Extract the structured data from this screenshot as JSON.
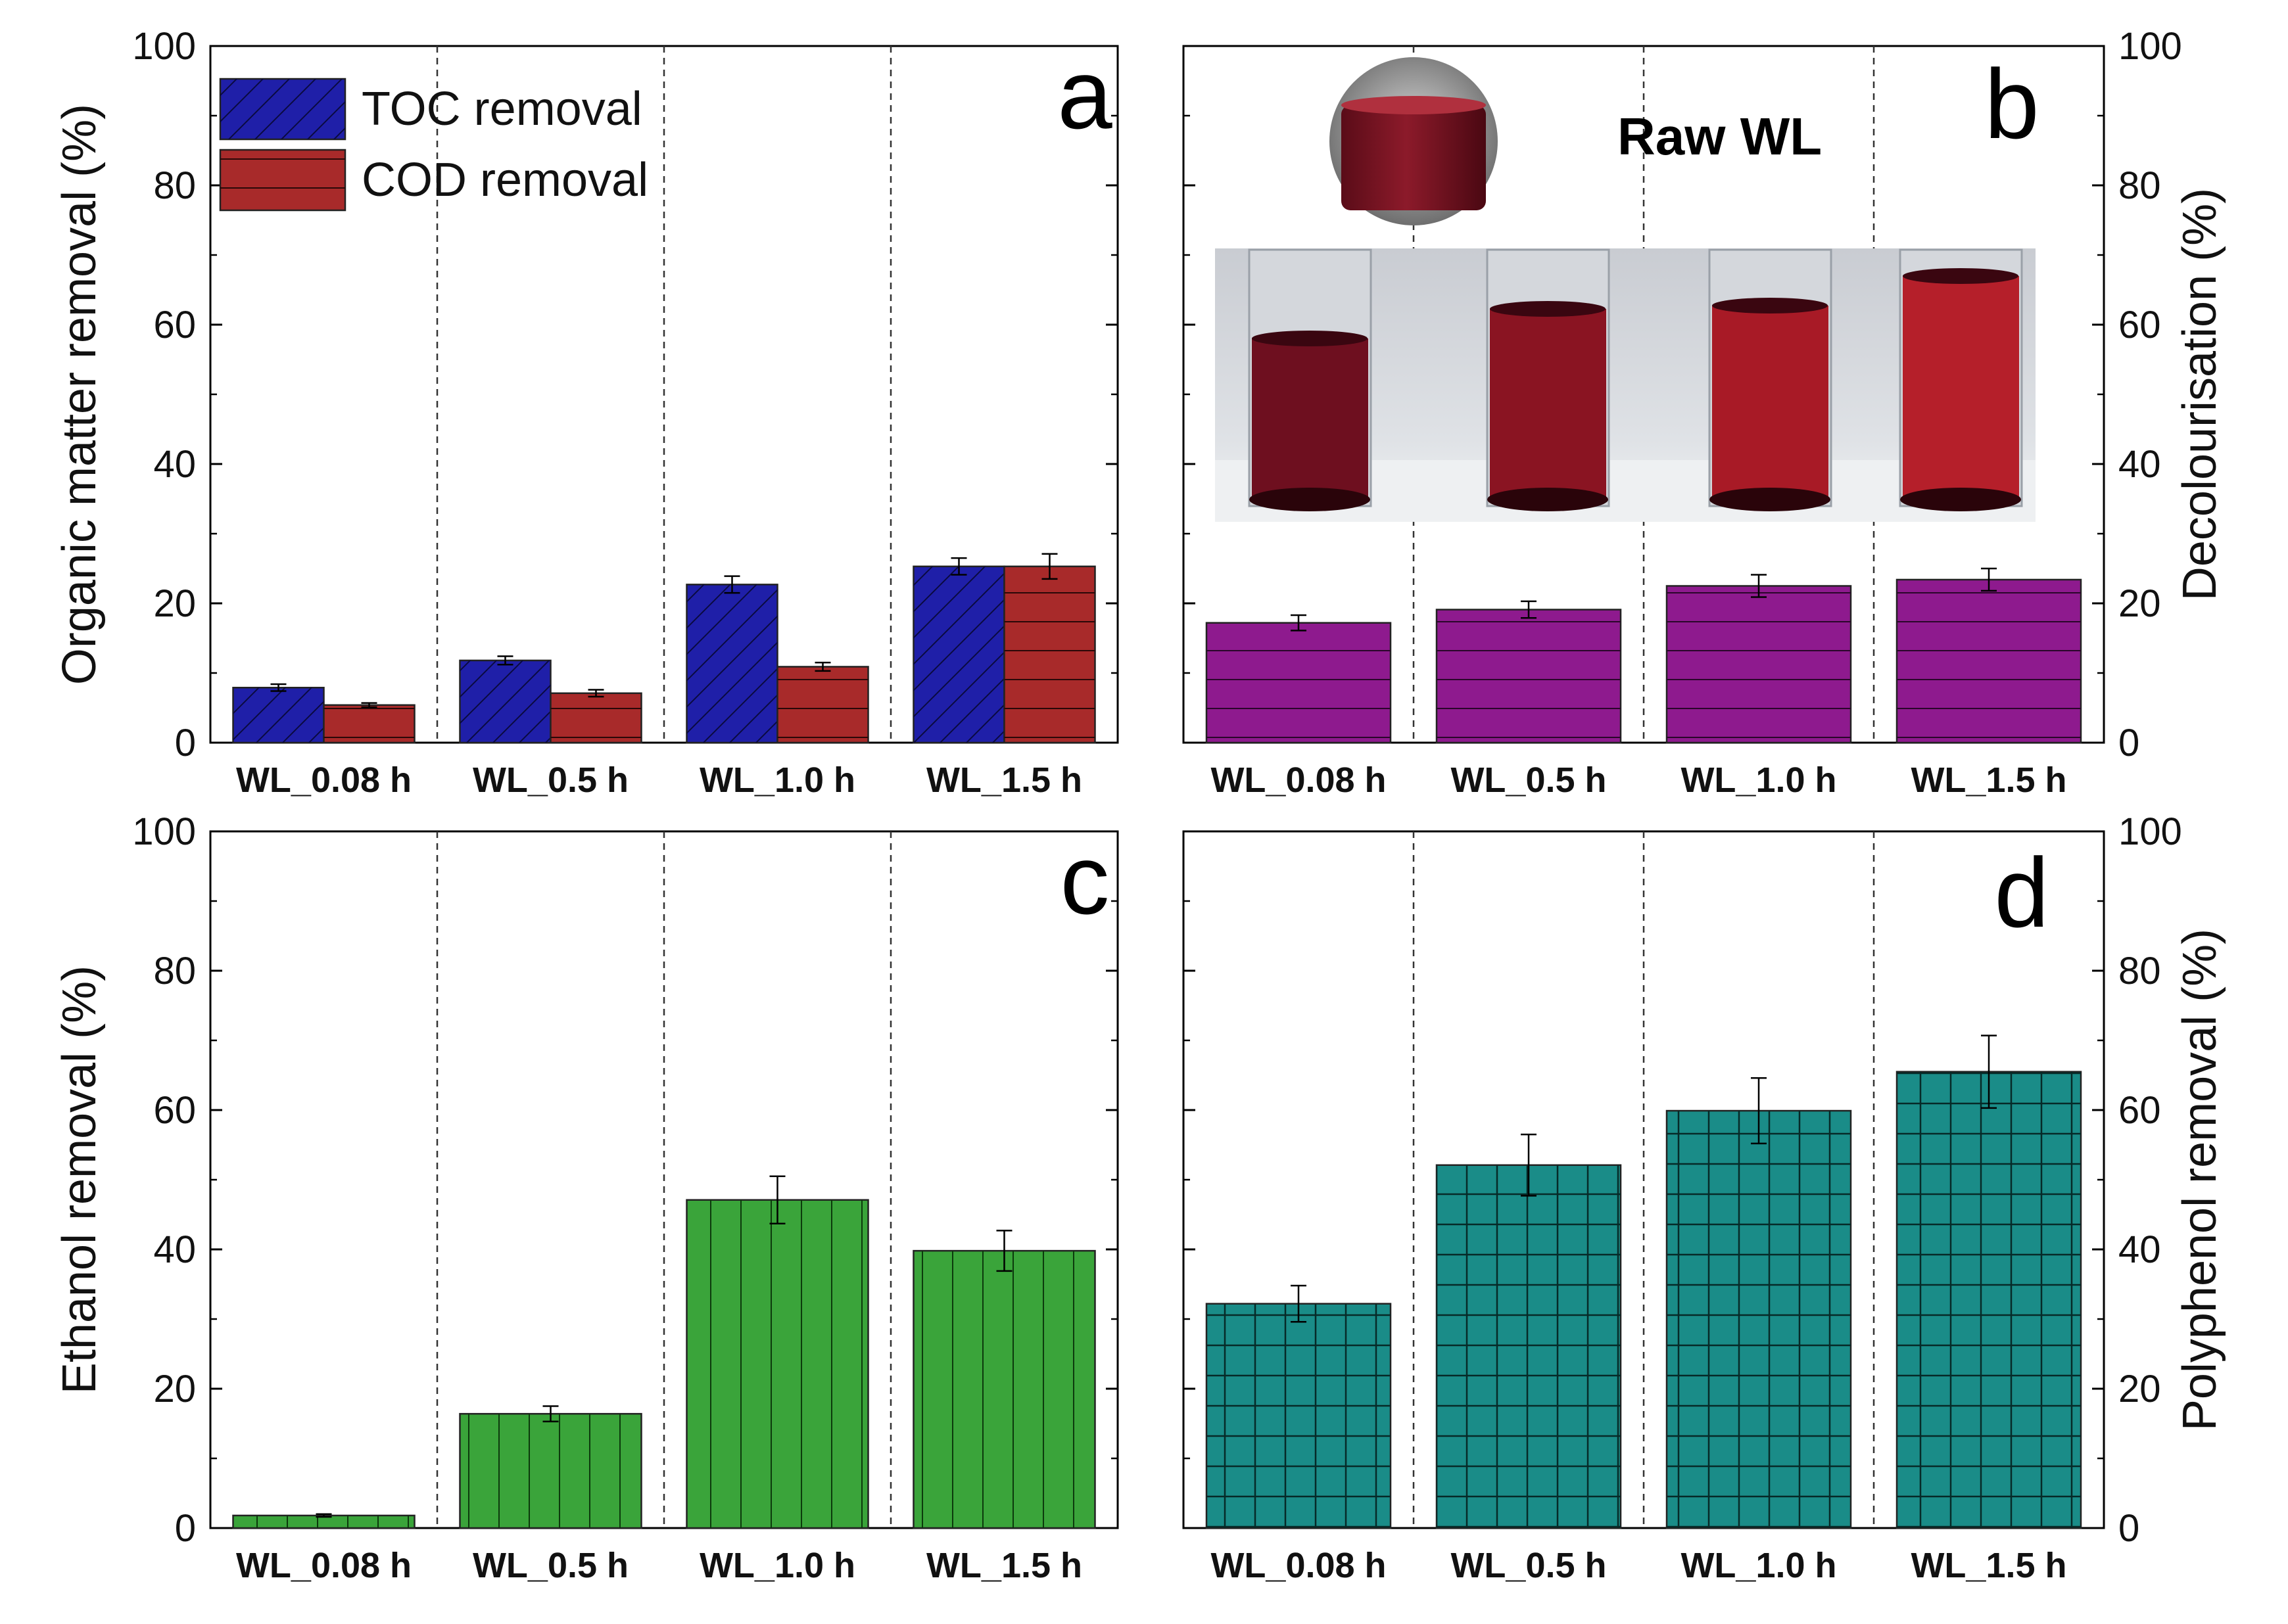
{
  "chart_data": [
    {
      "panel": "a",
      "type": "bar",
      "categories": [
        "WL_0.08 h",
        "WL_0.5 h",
        "WL_1.0 h",
        "WL_1.5 h"
      ],
      "series": [
        {
          "name": "TOC removal",
          "values": [
            7.9,
            11.8,
            22.7,
            25.3
          ],
          "errors": [
            0.5,
            0.6,
            1.2,
            1.2
          ],
          "color": "#1f1fa8",
          "pattern": "diagonal-hatch"
        },
        {
          "name": "COD removal",
          "values": [
            5.4,
            7.1,
            10.9,
            25.3
          ],
          "errors": [
            0.3,
            0.5,
            0.6,
            1.8
          ],
          "color": "#a82a2a",
          "pattern": "horizontal-lines"
        }
      ],
      "ylabel": "Organic matter removal (%)",
      "ylim": [
        0,
        100
      ],
      "yticks": [
        "0",
        "20",
        "40",
        "60",
        "80",
        "100"
      ],
      "yaxis_side": "left",
      "legend_location": "top-left",
      "grid": false
    },
    {
      "panel": "b",
      "type": "bar",
      "categories": [
        "WL_0.08 h",
        "WL_0.5 h",
        "WL_1.0 h",
        "WL_1.5 h"
      ],
      "series": [
        {
          "name": "Decolourisation",
          "values": [
            17.2,
            19.1,
            22.5,
            23.4
          ],
          "errors": [
            1.1,
            1.2,
            1.6,
            1.6
          ],
          "color": "#8e1a8e",
          "pattern": "horizontal-lines"
        }
      ],
      "ylabel": "Decolourisation (%)",
      "ylim": [
        0,
        100
      ],
      "yticks": [
        "0",
        "20",
        "40",
        "60",
        "80",
        "100"
      ],
      "yaxis_side": "right",
      "inset_label": "Raw WL",
      "grid": false
    },
    {
      "panel": "c",
      "type": "bar",
      "categories": [
        "WL_0.08 h",
        "WL_0.5 h",
        "WL_1.0 h",
        "WL_1.5 h"
      ],
      "series": [
        {
          "name": "Ethanol removal",
          "values": [
            1.8,
            16.4,
            47.1,
            39.8
          ],
          "errors": [
            0.2,
            1.1,
            3.4,
            2.9
          ],
          "color": "#3aa43a",
          "pattern": "vertical-lines"
        }
      ],
      "ylabel": "Ethanol removal (%)",
      "ylim": [
        0,
        100
      ],
      "yticks": [
        "0",
        "20",
        "40",
        "60",
        "80",
        "100"
      ],
      "yaxis_side": "left",
      "grid": false
    },
    {
      "panel": "d",
      "type": "bar",
      "categories": [
        "WL_0.08 h",
        "WL_0.5 h",
        "WL_1.0 h",
        "WL_1.5 h"
      ],
      "series": [
        {
          "name": "Polyphenol removal",
          "values": [
            32.2,
            52.1,
            59.9,
            65.5
          ],
          "errors": [
            2.6,
            4.4,
            4.7,
            5.2
          ],
          "color": "#1a8c88",
          "pattern": "grid"
        }
      ],
      "ylabel": "Polyphenol removal (%)",
      "ylim": [
        0,
        100
      ],
      "yticks": [
        "0",
        "20",
        "40",
        "60",
        "80",
        "100"
      ],
      "yaxis_side": "right",
      "grid": false
    }
  ]
}
